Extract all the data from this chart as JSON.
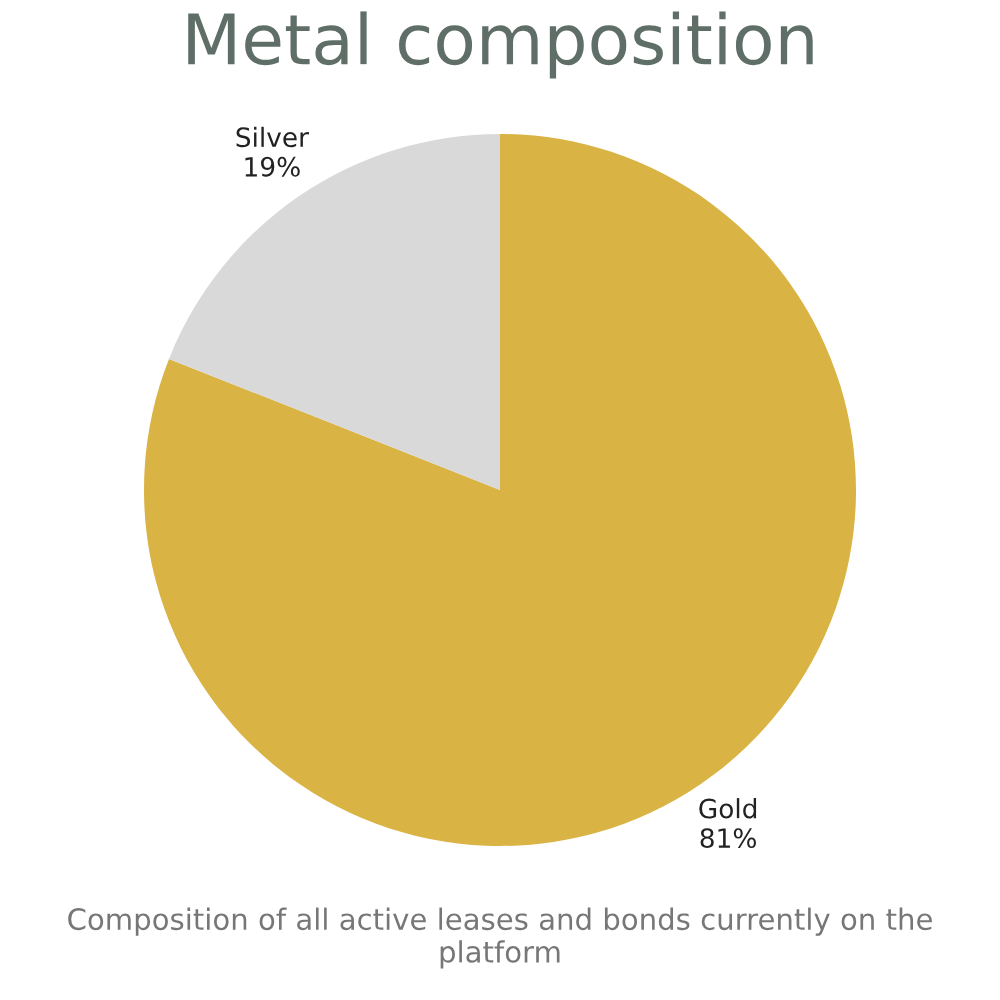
{
  "chart_data": {
    "type": "pie",
    "title": "Metal composition",
    "categories": [
      "Gold",
      "Silver"
    ],
    "values": [
      81,
      19
    ],
    "colors": [
      "#d9b343",
      "#d9d9d9"
    ],
    "value_labels": [
      "81%",
      "19%"
    ],
    "annotations": [
      "Composition of all active leases and bonds currently on the platform"
    ]
  }
}
